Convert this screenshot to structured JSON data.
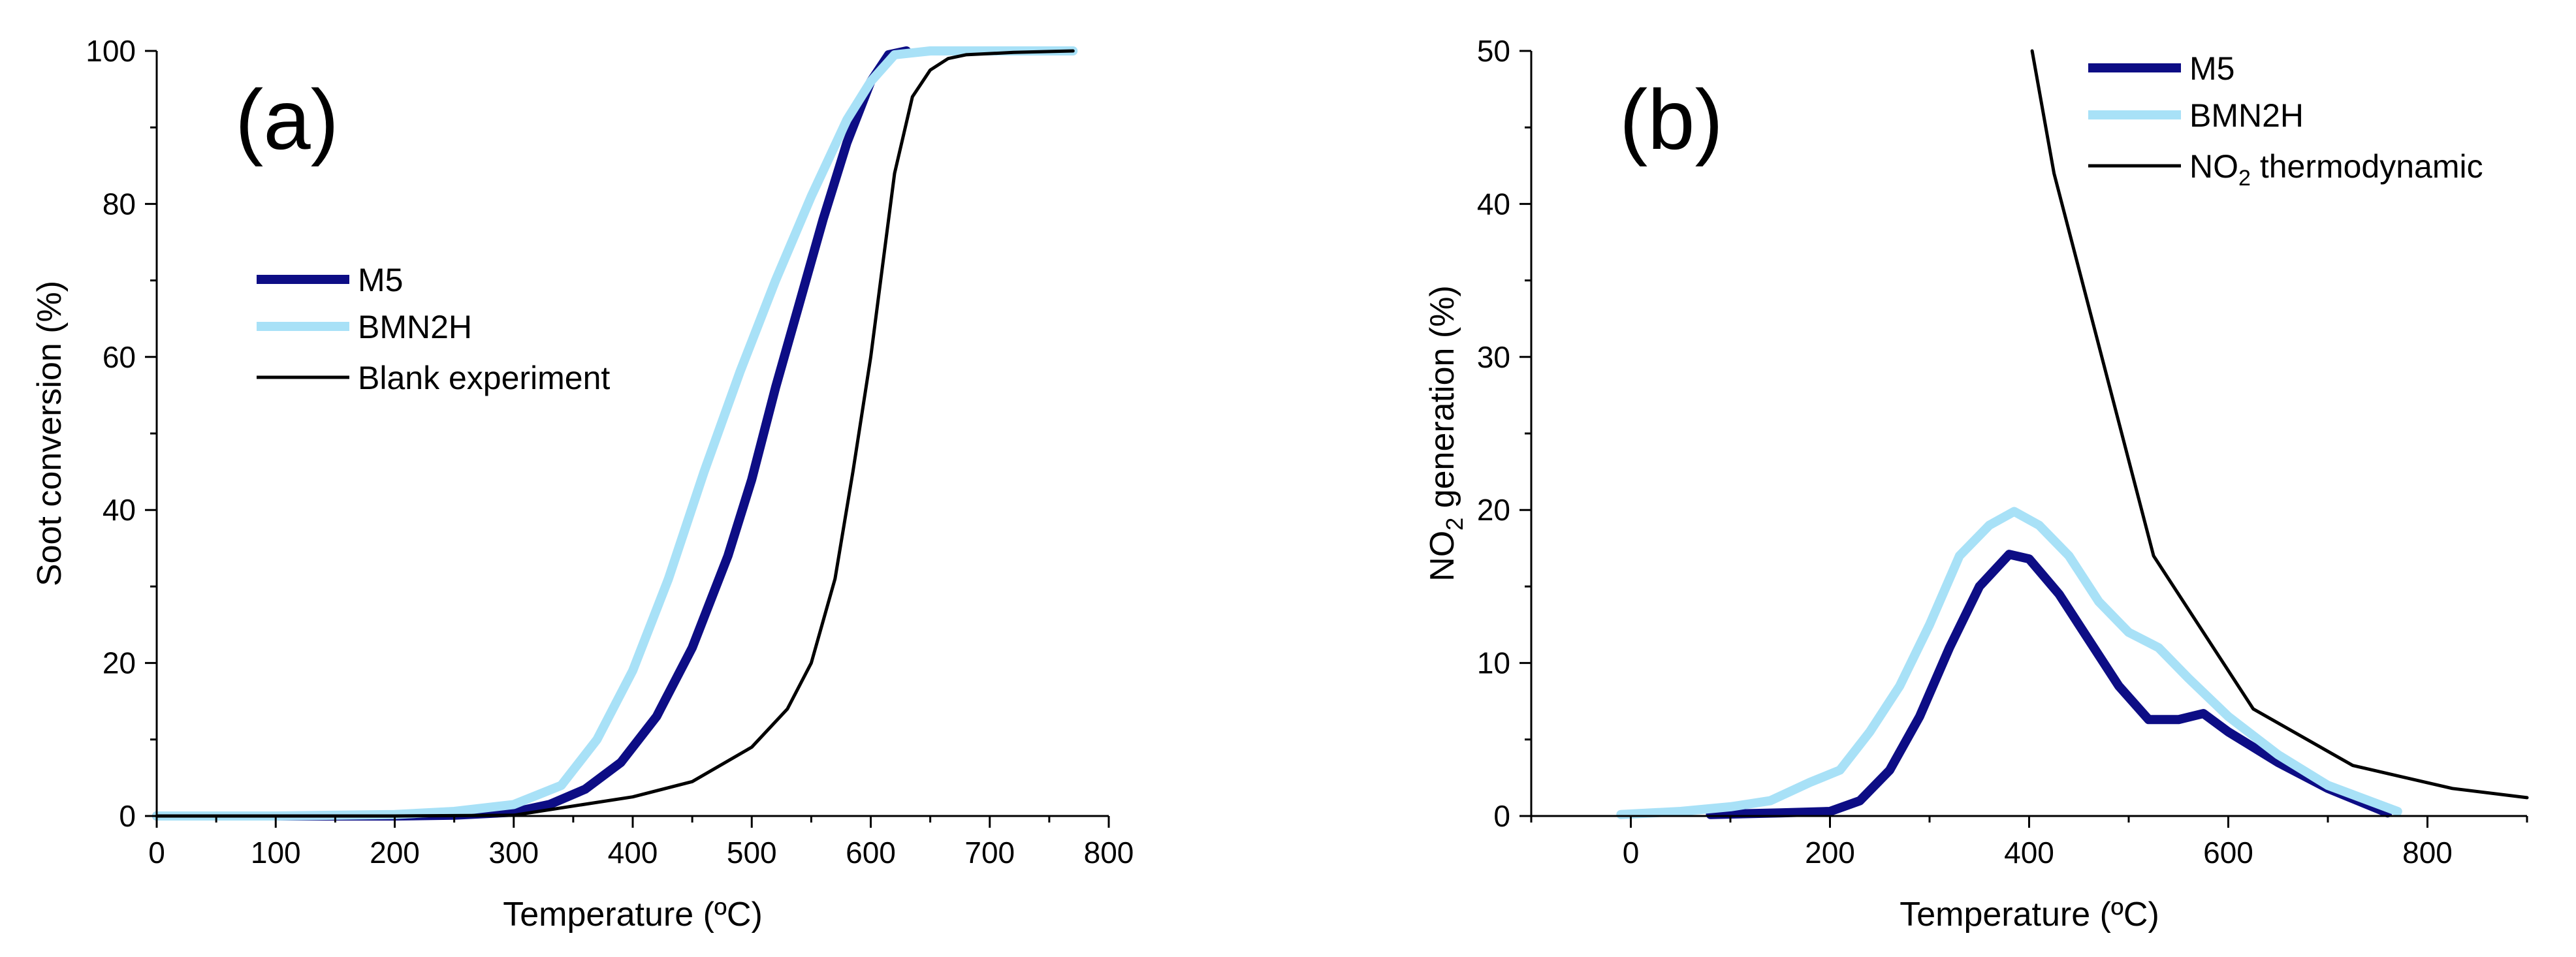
{
  "colors": {
    "m5": "#0d0d85",
    "bmn2h": "#a8e1f7",
    "black": "#000000"
  },
  "chart_data": [
    {
      "type": "line",
      "panel_label": "(a)",
      "xlabel": "Temperature (ºC)",
      "ylabel": "Soot conversion (%)",
      "xlim": [
        0,
        800
      ],
      "ylim": [
        0,
        100
      ],
      "xticks": [
        "0",
        "100",
        "200",
        "300",
        "400",
        "500",
        "600",
        "700",
        "800"
      ],
      "yticks": [
        "0",
        "20",
        "40",
        "60",
        "80",
        "100"
      ],
      "legend_position": "center-left",
      "series": [
        {
          "name": "M5",
          "color_key": "m5",
          "x": [
            0,
            100,
            200,
            250,
            300,
            330,
            360,
            390,
            420,
            450,
            480,
            500,
            520,
            540,
            560,
            580,
            600,
            615,
            630
          ],
          "y": [
            0,
            0,
            0,
            0.1,
            0.5,
            1.5,
            3.5,
            7,
            13,
            22,
            34,
            44,
            56,
            67,
            78,
            88,
            96,
            99.5,
            100
          ]
        },
        {
          "name": "BMN2H",
          "color_key": "bmn2h",
          "x": [
            0,
            100,
            200,
            250,
            300,
            340,
            370,
            400,
            430,
            460,
            490,
            520,
            550,
            580,
            600,
            620,
            650,
            700,
            770
          ],
          "y": [
            0,
            0,
            0.2,
            0.6,
            1.5,
            4,
            10,
            19,
            31,
            45,
            58,
            70,
            81,
            91,
            96,
            99.5,
            100,
            100,
            100
          ]
        },
        {
          "name": "Blank experiment",
          "color_key": "black",
          "x": [
            0,
            200,
            300,
            400,
            450,
            500,
            530,
            550,
            570,
            585,
            600,
            610,
            620,
            635,
            650,
            665,
            680,
            720,
            770
          ],
          "y": [
            0,
            0,
            0.1,
            2.5,
            4.5,
            9,
            14,
            20,
            31,
            45,
            60,
            72,
            84,
            94,
            97.5,
            99,
            99.5,
            99.8,
            100
          ]
        }
      ]
    },
    {
      "type": "line",
      "panel_label": "(b)",
      "xlabel": "Temperature (ºC)",
      "ylabel_main": "NO",
      "ylabel_sub": "2",
      "ylabel_rest": " generation (%)",
      "xlim": [
        -100,
        900
      ],
      "ylim": [
        0,
        50
      ],
      "xticks": [
        "0",
        "200",
        "400",
        "600",
        "800"
      ],
      "yticks": [
        "0",
        "10",
        "20",
        "30",
        "40",
        "50"
      ],
      "legend_position": "top-right",
      "series": [
        {
          "name": "M5",
          "color_key": "m5",
          "x": [
            80,
            150,
            200,
            230,
            260,
            290,
            320,
            350,
            380,
            400,
            430,
            460,
            490,
            520,
            550,
            575,
            600,
            650,
            700,
            760
          ],
          "y": [
            0.1,
            0.2,
            0.3,
            1,
            3,
            6.5,
            11,
            15,
            17.1,
            16.8,
            14.5,
            11.5,
            8.5,
            6.3,
            6.3,
            6.7,
            5.5,
            3.5,
            1.8,
            0.2
          ]
        },
        {
          "name": "BMN2H",
          "color_key": "bmn2h",
          "x": [
            -10,
            50,
            100,
            140,
            180,
            210,
            240,
            270,
            300,
            330,
            360,
            385,
            410,
            440,
            470,
            500,
            530,
            560,
            600,
            650,
            700,
            770
          ],
          "y": [
            0.1,
            0.3,
            0.6,
            1,
            2.2,
            3,
            5.5,
            8.5,
            12.5,
            17,
            19,
            19.9,
            19,
            17,
            14,
            12,
            11,
            9,
            6.5,
            4,
            2,
            0.3
          ]
        },
        {
          "name": "NO2 thermodynamic",
          "color_key": "black",
          "x": [
            403,
            425,
            525,
            625,
            725,
            825,
            900
          ],
          "y": [
            50,
            42,
            17,
            7,
            3.3,
            1.8,
            1.2
          ]
        }
      ],
      "legend_labels": [
        {
          "text": "M5"
        },
        {
          "text": "BMN2H"
        },
        {
          "main": "NO",
          "sub": "2",
          "rest": " thermodynamic"
        }
      ]
    }
  ]
}
